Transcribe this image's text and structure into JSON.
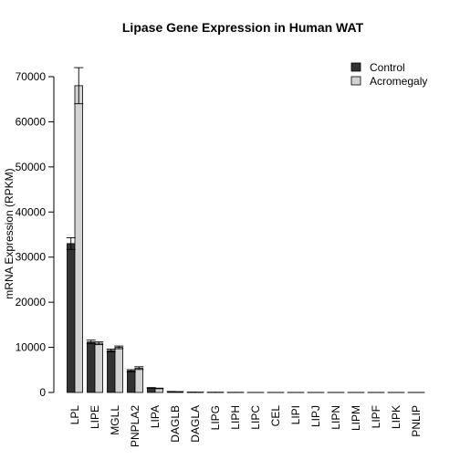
{
  "chart_data": {
    "type": "bar",
    "title": "Lipase Gene Expression in Human WAT",
    "xlabel": "",
    "ylabel": "mRNA Expression (RPKM)",
    "ylim": [
      0,
      70000
    ],
    "yticks": [
      0,
      10000,
      20000,
      30000,
      40000,
      50000,
      60000,
      70000
    ],
    "grid": false,
    "legend_position": "top-right",
    "categories": [
      "LPL",
      "LIPE",
      "MGLL",
      "PNPLA2",
      "LIPA",
      "DAGLB",
      "DAGLA",
      "LIPG",
      "LIPH",
      "LIPC",
      "CEL",
      "LIPI",
      "LIPJ",
      "LIPN",
      "LIPM",
      "LIPF",
      "LIPK",
      "PNLIP"
    ],
    "series": [
      {
        "name": "Control",
        "color": "#333333",
        "values": [
          33000,
          11200,
          9300,
          4800,
          1000,
          200,
          50,
          30,
          20,
          10,
          10,
          5,
          5,
          5,
          5,
          5,
          5,
          5
        ],
        "errors": [
          1300,
          400,
          300,
          250,
          80,
          20,
          10,
          5,
          5,
          2,
          2,
          1,
          1,
          1,
          1,
          1,
          1,
          1
        ]
      },
      {
        "name": "Acromegaly",
        "color": "#d3d3d3",
        "values": [
          68000,
          10900,
          10000,
          5400,
          900,
          150,
          40,
          30,
          20,
          10,
          10,
          5,
          5,
          5,
          5,
          5,
          5,
          5
        ],
        "errors": [
          4000,
          300,
          300,
          300,
          60,
          15,
          8,
          5,
          5,
          2,
          2,
          1,
          1,
          1,
          1,
          1,
          1,
          1
        ]
      }
    ]
  }
}
